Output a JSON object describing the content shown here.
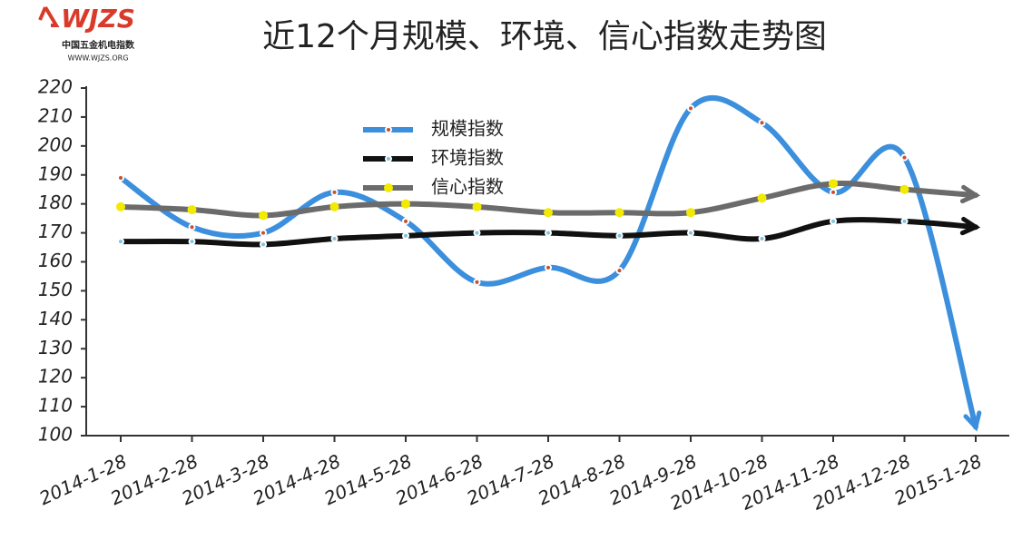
{
  "logo": {
    "mark": "WJZS",
    "name": "中国五金机电指数",
    "url": "WWW.WJZS.ORG"
  },
  "chart_data": {
    "type": "line",
    "title": "近12个月规模、环境、信心指数走势图",
    "categories": [
      "2014-1-28",
      "2014-2-28",
      "2014-3-28",
      "2014-4-28",
      "2014-5-28",
      "2014-6-28",
      "2014-7-28",
      "2014-8-28",
      "2014-9-28",
      "2014-10-28",
      "2014-11-28",
      "2014-12-28",
      "2015-1-28"
    ],
    "series": [
      {
        "name": "规模指数",
        "color": "#3b8fdc",
        "marker": "#c8502a",
        "values": [
          189,
          172,
          170,
          184,
          174,
          153,
          158,
          157,
          213,
          208,
          184,
          196,
          103
        ]
      },
      {
        "name": "环境指数",
        "color": "#111111",
        "marker": "#7fc3e6",
        "values": [
          167,
          167,
          166,
          168,
          169,
          170,
          170,
          169,
          170,
          168,
          174,
          174,
          172
        ]
      },
      {
        "name": "信心指数",
        "color": "#6b6b6b",
        "marker": "#f2ea00",
        "values": [
          179,
          178,
          176,
          179,
          180,
          179,
          177,
          177,
          177,
          182,
          187,
          185,
          183
        ]
      }
    ],
    "ylim": [
      100,
      220
    ],
    "yticks": [
      100,
      110,
      120,
      130,
      140,
      150,
      160,
      170,
      180,
      190,
      200,
      210,
      220
    ]
  }
}
